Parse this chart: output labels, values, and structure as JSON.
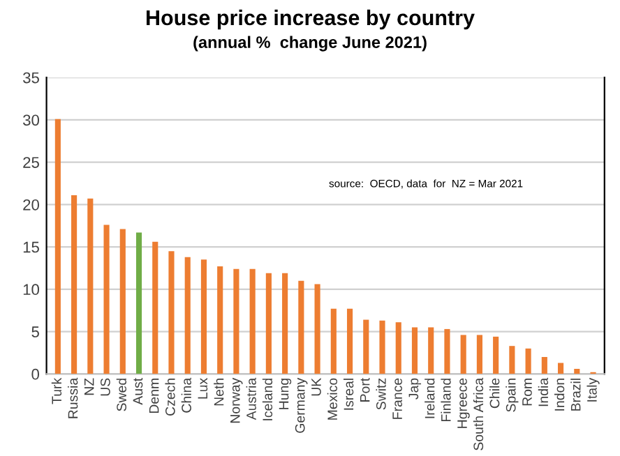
{
  "chart_data": {
    "type": "bar",
    "title": "House price increase by country",
    "subtitle": "(annual %  change June 2021)",
    "categories": [
      "Turk",
      "Russia",
      "NZ",
      "US",
      "Swed",
      "Aust",
      "Denm",
      "Czech",
      "China",
      "Lux",
      "Neth",
      "Norway",
      "Austria",
      "Iceland",
      "Hung",
      "Germany",
      "UK",
      "Mexico",
      "Isreal",
      "Port",
      "Switz",
      "France",
      "Jap",
      "Ireland",
      "Finland",
      "Hgreece",
      "South Africa",
      "Chile",
      "Spain",
      "Rom",
      "India",
      "Indon",
      "Brazil",
      "Italy"
    ],
    "values": [
      30.1,
      21.1,
      20.7,
      17.6,
      17.1,
      16.7,
      15.6,
      14.5,
      13.8,
      13.5,
      12.7,
      12.4,
      12.4,
      11.9,
      11.9,
      11.0,
      10.6,
      7.7,
      7.7,
      6.4,
      6.3,
      6.1,
      5.5,
      5.5,
      5.3,
      4.6,
      4.6,
      4.4,
      3.3,
      3.0,
      2.0,
      1.3,
      0.6,
      0.2
    ],
    "colors": [
      "#ed7d31",
      "#ed7d31",
      "#ed7d31",
      "#ed7d31",
      "#ed7d31",
      "#70ad47",
      "#ed7d31",
      "#ed7d31",
      "#ed7d31",
      "#ed7d31",
      "#ed7d31",
      "#ed7d31",
      "#ed7d31",
      "#ed7d31",
      "#ed7d31",
      "#ed7d31",
      "#ed7d31",
      "#ed7d31",
      "#ed7d31",
      "#ed7d31",
      "#ed7d31",
      "#ed7d31",
      "#ed7d31",
      "#ed7d31",
      "#ed7d31",
      "#ed7d31",
      "#ed7d31",
      "#ed7d31",
      "#ed7d31",
      "#ed7d31",
      "#ed7d31",
      "#ed7d31",
      "#ed7d31",
      "#ed7d31"
    ],
    "ylim": [
      0,
      35
    ],
    "yticks": [
      0,
      5,
      10,
      15,
      20,
      25,
      30,
      35
    ],
    "grid": "y",
    "annotations": [
      "source:  OECD, data  for  NZ = Mar 2021"
    ]
  }
}
